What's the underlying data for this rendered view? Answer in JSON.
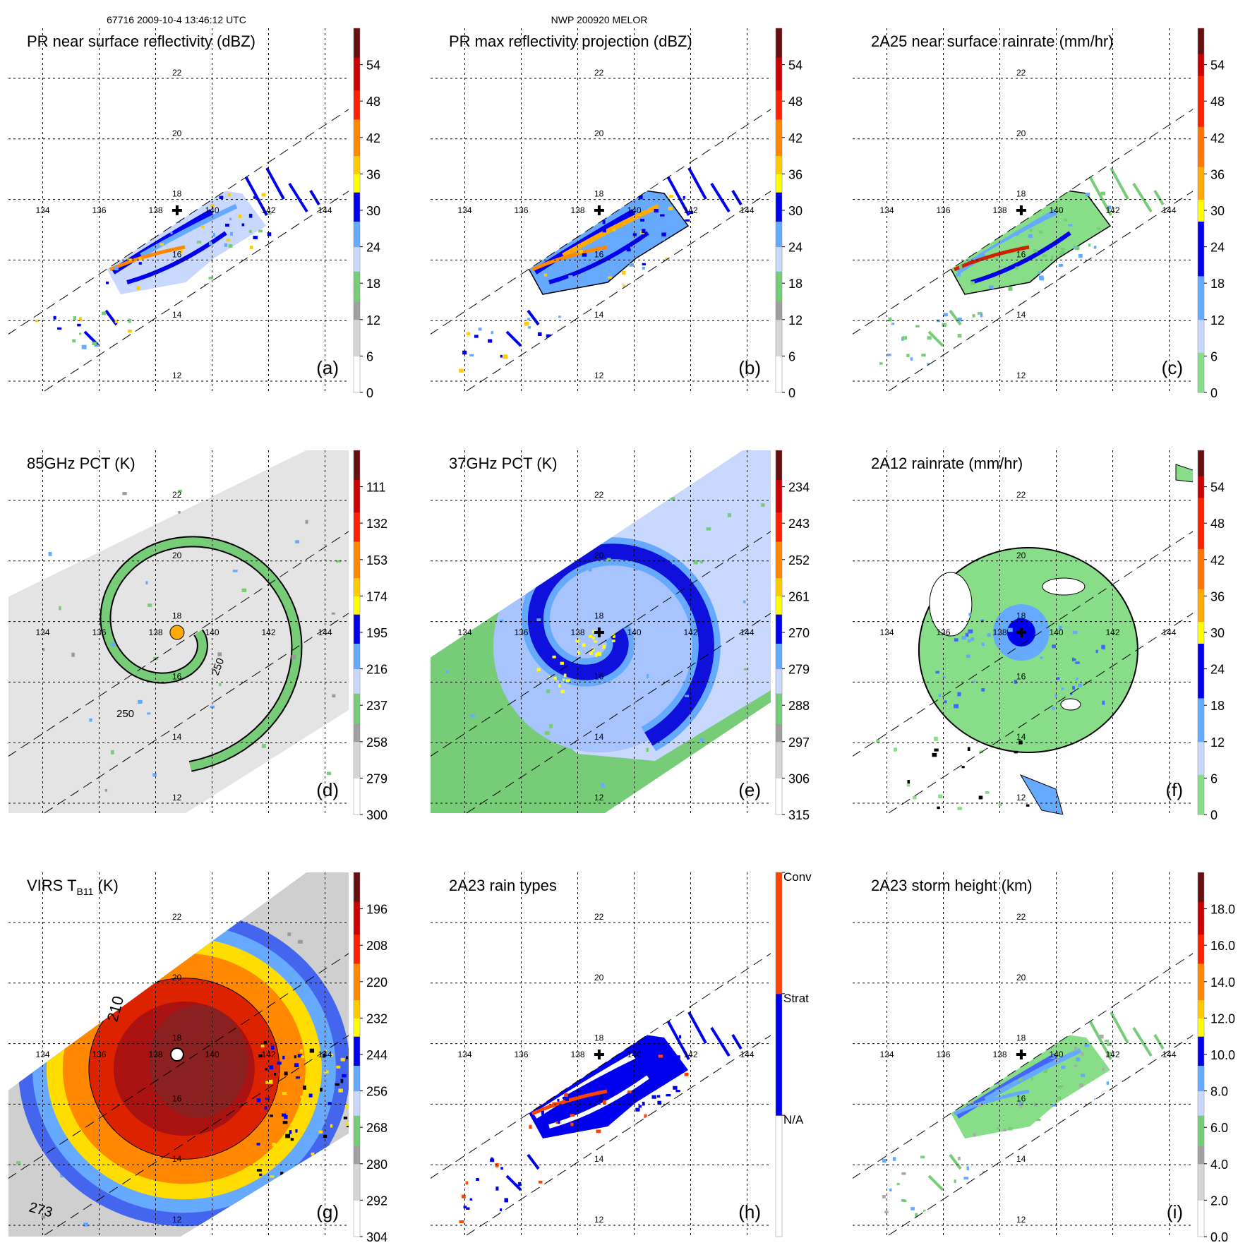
{
  "header": {
    "left": "67716 2009-10-4 13:46:12 UTC",
    "center": "NWP 200920 MELOR"
  },
  "grid": {
    "lon_labels": [
      "134",
      "136",
      "138",
      "140",
      "142",
      "144"
    ],
    "lat_labels": [
      "22",
      "20",
      "18",
      "16",
      "14",
      "12"
    ]
  },
  "palettes": {
    "standard": [
      "#ffffff",
      "#d6d6d6",
      "#a0a0a0",
      "#77cc77",
      "#c8d8ff",
      "#66aaff",
      "#0000ee",
      "#ffff00",
      "#ffcc00",
      "#ff8800",
      "#ff2200",
      "#cc0000",
      "#661111"
    ],
    "rain": [
      "#88dd88",
      "#c8d8ff",
      "#66aaff",
      "#0000ee",
      "#ffff00",
      "#ffaa00",
      "#ff7700",
      "#ff2200",
      "#cc0000",
      "#661111"
    ],
    "raintype": [
      "#ffffff",
      "#0000ee",
      "#ff4400"
    ]
  },
  "panels": [
    {
      "id": "a",
      "title": "PR near surface reflectivity (dBZ)",
      "letter": "(a)",
      "colorbar": {
        "palette": "standard",
        "min": 0,
        "max": 60,
        "invert": false,
        "ticks": [
          "0",
          "6",
          "12",
          "18",
          "24",
          "30",
          "36",
          "42",
          "48",
          "54"
        ],
        "tick_values": [
          0,
          6,
          12,
          18,
          24,
          30,
          36,
          42,
          48,
          54
        ]
      }
    },
    {
      "id": "b",
      "title": "PR max reflectivity projection (dBZ)",
      "letter": "(b)",
      "colorbar": {
        "palette": "standard",
        "min": 0,
        "max": 60,
        "invert": false,
        "ticks": [
          "0",
          "6",
          "12",
          "18",
          "24",
          "30",
          "36",
          "42",
          "48",
          "54"
        ],
        "tick_values": [
          0,
          6,
          12,
          18,
          24,
          30,
          36,
          42,
          48,
          54
        ]
      }
    },
    {
      "id": "c",
      "title": "2A25 near surface rainrate (mm/hr)",
      "letter": "(c)",
      "colorbar": {
        "palette": "rain",
        "min": 0,
        "max": 60,
        "invert": false,
        "ticks": [
          "0",
          "6",
          "12",
          "18",
          "24",
          "30",
          "36",
          "42",
          "48",
          "54"
        ],
        "tick_values": [
          0,
          6,
          12,
          18,
          24,
          30,
          36,
          42,
          48,
          54
        ]
      }
    },
    {
      "id": "d",
      "title": "85GHz PCT (K)",
      "letter": "(d)",
      "contour_labels": [
        "250",
        "250"
      ],
      "colorbar": {
        "palette": "standard",
        "min": 90,
        "max": 300,
        "invert": true,
        "ticks": [
          "111",
          "132",
          "153",
          "174",
          "195",
          "216",
          "237",
          "258",
          "279",
          "300"
        ],
        "tick_values": [
          111,
          132,
          153,
          174,
          195,
          216,
          237,
          258,
          279,
          300
        ]
      }
    },
    {
      "id": "e",
      "title": "37GHz PCT (K)",
      "letter": "(e)",
      "colorbar": {
        "palette": "standard",
        "min": 225,
        "max": 315,
        "invert": true,
        "ticks": [
          "234",
          "243",
          "252",
          "261",
          "270",
          "279",
          "288",
          "297",
          "306",
          "315"
        ],
        "tick_values": [
          234,
          243,
          252,
          261,
          270,
          279,
          288,
          297,
          306,
          315
        ]
      }
    },
    {
      "id": "f",
      "title": "2A12 rainrate (mm/hr)",
      "letter": "(f)",
      "colorbar": {
        "palette": "rain",
        "min": 0,
        "max": 60,
        "invert": false,
        "ticks": [
          "0",
          "6",
          "12",
          "18",
          "24",
          "30",
          "36",
          "42",
          "48",
          "54"
        ],
        "tick_values": [
          0,
          6,
          12,
          18,
          24,
          30,
          36,
          42,
          48,
          54
        ]
      }
    },
    {
      "id": "g",
      "title": "VIRS T",
      "title_sub": "B11",
      "title_suffix": " (K)",
      "letter": "(g)",
      "contour_labels": [
        "210",
        "273"
      ],
      "colorbar": {
        "palette": "standard",
        "min": 184,
        "max": 304,
        "invert": true,
        "ticks": [
          "196",
          "208",
          "220",
          "232",
          "244",
          "256",
          "268",
          "280",
          "292",
          "304"
        ],
        "tick_values": [
          196,
          208,
          220,
          232,
          244,
          256,
          268,
          280,
          292,
          304
        ]
      }
    },
    {
      "id": "h",
      "title": "2A23 rain types",
      "letter": "(h)",
      "colorbar": {
        "palette": "raintype",
        "categorical": true,
        "ticks": [
          "N/A",
          "Strat",
          "Conv"
        ]
      }
    },
    {
      "id": "i",
      "title": "2A23 storm height (km)",
      "letter": "(i)",
      "colorbar": {
        "palette": "standard",
        "min": 0,
        "max": 20,
        "invert": false,
        "ticks": [
          "0.0",
          "2.0",
          "4.0",
          "6.0",
          "8.0",
          "10.0",
          "12.0",
          "14.0",
          "16.0",
          "18.0"
        ],
        "tick_values": [
          0,
          2,
          4,
          6,
          8,
          10,
          12,
          14,
          16,
          18
        ]
      }
    }
  ]
}
